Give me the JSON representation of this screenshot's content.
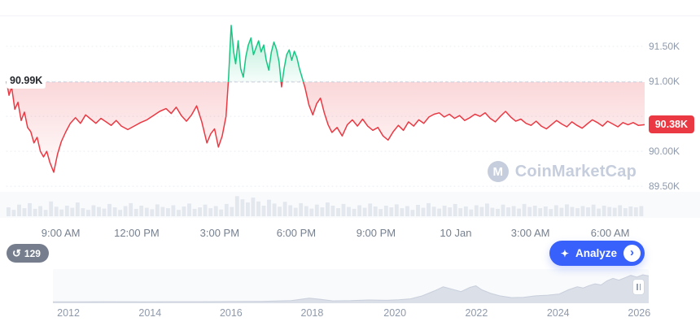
{
  "price_labels": {
    "reference": "90.99K",
    "current": "90.38K"
  },
  "watermark": {
    "text": "CoinMarketCap",
    "logo_letter": "M"
  },
  "controls": {
    "history_count": "129",
    "analyze_label": "Analyze"
  },
  "icons": {
    "history": "↺",
    "sparkle": "✦",
    "chevron_right": "›"
  },
  "chart_data": {
    "type": "line",
    "title": "",
    "ylabel": "",
    "xlabel": "",
    "ylim": [
      89.42,
      91.93
    ],
    "reference_price": 90.99,
    "last_price": 90.38,
    "grid": true,
    "legend": "none",
    "colors": {
      "up": "#16c784",
      "down": "#ea3943",
      "badge": "#ea3943",
      "grid": "#e8ecf2",
      "axis_text": "#8e99ab"
    },
    "y_ticks": [
      {
        "value": 91.5,
        "label": "91.50K"
      },
      {
        "value": 91.0,
        "label": "91.00K"
      },
      {
        "value": 90.5,
        "label": ""
      },
      {
        "value": 90.0,
        "label": "90.00K"
      },
      {
        "value": 89.5,
        "label": "89.50K"
      }
    ],
    "x_ticks": [
      {
        "label": "9:00 AM",
        "f": 0.085
      },
      {
        "label": "12:00 PM",
        "f": 0.204
      },
      {
        "label": "3:00 PM",
        "f": 0.334
      },
      {
        "label": "6:00 PM",
        "f": 0.454
      },
      {
        "label": "9:00 PM",
        "f": 0.579
      },
      {
        "label": "10 Jan",
        "f": 0.704
      },
      {
        "label": "3:00 AM",
        "f": 0.821
      },
      {
        "label": "6:00 AM",
        "f": 0.946
      }
    ],
    "series": [
      {
        "name": "price",
        "points": [
          [
            0.0,
            91.0
          ],
          [
            0.004,
            90.8
          ],
          [
            0.008,
            90.92
          ],
          [
            0.013,
            90.6
          ],
          [
            0.018,
            90.7
          ],
          [
            0.023,
            90.44
          ],
          [
            0.028,
            90.56
          ],
          [
            0.033,
            90.34
          ],
          [
            0.038,
            90.28
          ],
          [
            0.043,
            90.12
          ],
          [
            0.048,
            90.2
          ],
          [
            0.053,
            90.0
          ],
          [
            0.058,
            89.92
          ],
          [
            0.063,
            90.0
          ],
          [
            0.068,
            89.84
          ],
          [
            0.074,
            89.7
          ],
          [
            0.08,
            89.96
          ],
          [
            0.086,
            90.14
          ],
          [
            0.093,
            90.28
          ],
          [
            0.1,
            90.4
          ],
          [
            0.108,
            90.48
          ],
          [
            0.116,
            90.4
          ],
          [
            0.124,
            90.52
          ],
          [
            0.132,
            90.46
          ],
          [
            0.14,
            90.4
          ],
          [
            0.148,
            90.47
          ],
          [
            0.156,
            90.42
          ],
          [
            0.164,
            90.37
          ],
          [
            0.172,
            90.44
          ],
          [
            0.18,
            90.36
          ],
          [
            0.19,
            90.31
          ],
          [
            0.2,
            90.36
          ],
          [
            0.21,
            90.41
          ],
          [
            0.22,
            90.45
          ],
          [
            0.23,
            90.51
          ],
          [
            0.24,
            90.57
          ],
          [
            0.25,
            90.61
          ],
          [
            0.258,
            90.54
          ],
          [
            0.266,
            90.63
          ],
          [
            0.274,
            90.51
          ],
          [
            0.282,
            90.43
          ],
          [
            0.29,
            90.52
          ],
          [
            0.298,
            90.65
          ],
          [
            0.306,
            90.42
          ],
          [
            0.314,
            90.12
          ],
          [
            0.32,
            90.25
          ],
          [
            0.326,
            90.32
          ],
          [
            0.332,
            90.06
          ],
          [
            0.338,
            90.22
          ],
          [
            0.344,
            90.5
          ],
          [
            0.348,
            91.05
          ],
          [
            0.352,
            91.8
          ],
          [
            0.356,
            91.42
          ],
          [
            0.359,
            91.25
          ],
          [
            0.363,
            91.58
          ],
          [
            0.367,
            91.18
          ],
          [
            0.371,
            91.06
          ],
          [
            0.375,
            91.35
          ],
          [
            0.379,
            91.52
          ],
          [
            0.383,
            91.62
          ],
          [
            0.387,
            91.38
          ],
          [
            0.391,
            91.48
          ],
          [
            0.395,
            91.58
          ],
          [
            0.399,
            91.42
          ],
          [
            0.403,
            91.52
          ],
          [
            0.407,
            91.3
          ],
          [
            0.411,
            91.16
          ],
          [
            0.415,
            91.42
          ],
          [
            0.419,
            91.56
          ],
          [
            0.423,
            91.46
          ],
          [
            0.427,
            91.28
          ],
          [
            0.431,
            90.92
          ],
          [
            0.435,
            91.18
          ],
          [
            0.439,
            91.38
          ],
          [
            0.443,
            91.45
          ],
          [
            0.447,
            91.3
          ],
          [
            0.451,
            91.43
          ],
          [
            0.455,
            91.34
          ],
          [
            0.459,
            91.18
          ],
          [
            0.463,
            91.06
          ],
          [
            0.468,
            90.9
          ],
          [
            0.474,
            90.66
          ],
          [
            0.48,
            90.52
          ],
          [
            0.486,
            90.68
          ],
          [
            0.492,
            90.76
          ],
          [
            0.498,
            90.55
          ],
          [
            0.504,
            90.38
          ],
          [
            0.51,
            90.27
          ],
          [
            0.518,
            90.34
          ],
          [
            0.526,
            90.22
          ],
          [
            0.534,
            90.38
          ],
          [
            0.542,
            90.45
          ],
          [
            0.55,
            90.36
          ],
          [
            0.558,
            90.46
          ],
          [
            0.566,
            90.36
          ],
          [
            0.574,
            90.3
          ],
          [
            0.582,
            90.34
          ],
          [
            0.59,
            90.22
          ],
          [
            0.598,
            90.16
          ],
          [
            0.606,
            90.28
          ],
          [
            0.614,
            90.37
          ],
          [
            0.622,
            90.3
          ],
          [
            0.63,
            90.42
          ],
          [
            0.638,
            90.36
          ],
          [
            0.646,
            90.45
          ],
          [
            0.654,
            90.4
          ],
          [
            0.662,
            90.49
          ],
          [
            0.67,
            90.53
          ],
          [
            0.678,
            90.55
          ],
          [
            0.686,
            90.49
          ],
          [
            0.694,
            90.53
          ],
          [
            0.702,
            90.47
          ],
          [
            0.71,
            90.51
          ],
          [
            0.718,
            90.44
          ],
          [
            0.726,
            90.48
          ],
          [
            0.734,
            90.53
          ],
          [
            0.742,
            90.5
          ],
          [
            0.75,
            90.55
          ],
          [
            0.758,
            90.47
          ],
          [
            0.766,
            90.42
          ],
          [
            0.774,
            90.5
          ],
          [
            0.782,
            90.57
          ],
          [
            0.79,
            90.49
          ],
          [
            0.798,
            90.43
          ],
          [
            0.806,
            90.46
          ],
          [
            0.814,
            90.4
          ],
          [
            0.822,
            90.37
          ],
          [
            0.83,
            90.43
          ],
          [
            0.838,
            90.36
          ],
          [
            0.846,
            90.32
          ],
          [
            0.854,
            90.38
          ],
          [
            0.862,
            90.44
          ],
          [
            0.87,
            90.39
          ],
          [
            0.878,
            90.35
          ],
          [
            0.886,
            90.42
          ],
          [
            0.894,
            90.37
          ],
          [
            0.902,
            90.33
          ],
          [
            0.91,
            90.39
          ],
          [
            0.918,
            90.45
          ],
          [
            0.926,
            90.41
          ],
          [
            0.934,
            90.36
          ],
          [
            0.942,
            90.43
          ],
          [
            0.95,
            90.39
          ],
          [
            0.958,
            90.35
          ],
          [
            0.966,
            90.41
          ],
          [
            0.974,
            90.38
          ],
          [
            0.982,
            90.41
          ],
          [
            0.99,
            90.37
          ],
          [
            1.0,
            90.38
          ]
        ]
      }
    ],
    "volume_bars": [
      0.42,
      0.3,
      0.55,
      0.38,
      0.62,
      0.35,
      0.48,
      0.3,
      0.7,
      0.45,
      0.32,
      0.5,
      0.4,
      0.65,
      0.38,
      0.3,
      0.52,
      0.44,
      0.36,
      0.58,
      0.42,
      0.3,
      0.48,
      0.62,
      0.35,
      0.5,
      0.4,
      0.33,
      0.56,
      0.44,
      0.38,
      0.52,
      0.3,
      0.46,
      0.6,
      0.35,
      0.42,
      0.55,
      0.38,
      0.48,
      0.32,
      0.58,
      0.44,
      0.95,
      0.8,
      0.65,
      0.88,
      0.7,
      0.5,
      0.78,
      0.6,
      0.45,
      0.68,
      0.52,
      0.4,
      0.62,
      0.48,
      0.36,
      0.55,
      0.42,
      0.65,
      0.5,
      0.38,
      0.58,
      0.44,
      0.35,
      0.52,
      0.4,
      0.6,
      0.46,
      0.34,
      0.5,
      0.42,
      0.56,
      0.38,
      0.48,
      0.3,
      0.54,
      0.4,
      0.62,
      0.45,
      0.36,
      0.5,
      0.42,
      0.58,
      0.38,
      0.46,
      0.32,
      0.52,
      0.44,
      0.6,
      0.4,
      0.35,
      0.55,
      0.42,
      0.48,
      0.36,
      0.58,
      0.44,
      0.5,
      0.38,
      0.46,
      0.34,
      0.52,
      0.4,
      0.56,
      0.44,
      0.38,
      0.48,
      0.42,
      0.55,
      0.36,
      0.5,
      0.44,
      0.4,
      0.52,
      0.38,
      0.46,
      0.42,
      0.48
    ],
    "minimap": {
      "type": "area",
      "year_ticks": [
        {
          "label": "2012",
          "f": 0.026
        },
        {
          "label": "2014",
          "f": 0.163
        },
        {
          "label": "2016",
          "f": 0.299
        },
        {
          "label": "2018",
          "f": 0.435
        },
        {
          "label": "2020",
          "f": 0.574
        },
        {
          "label": "2022",
          "f": 0.711
        },
        {
          "label": "2024",
          "f": 0.848
        },
        {
          "label": "2026",
          "f": 0.984
        }
      ],
      "points": [
        [
          0,
          0.02
        ],
        [
          0.05,
          0.02
        ],
        [
          0.1,
          0.025
        ],
        [
          0.15,
          0.02
        ],
        [
          0.2,
          0.025
        ],
        [
          0.25,
          0.025
        ],
        [
          0.3,
          0.03
        ],
        [
          0.35,
          0.035
        ],
        [
          0.4,
          0.06
        ],
        [
          0.43,
          0.14
        ],
        [
          0.45,
          0.1
        ],
        [
          0.47,
          0.05
        ],
        [
          0.5,
          0.06
        ],
        [
          0.53,
          0.08
        ],
        [
          0.56,
          0.07
        ],
        [
          0.58,
          0.09
        ],
        [
          0.6,
          0.12
        ],
        [
          0.62,
          0.22
        ],
        [
          0.64,
          0.38
        ],
        [
          0.655,
          0.52
        ],
        [
          0.67,
          0.44
        ],
        [
          0.685,
          0.36
        ],
        [
          0.7,
          0.5
        ],
        [
          0.71,
          0.55
        ],
        [
          0.72,
          0.42
        ],
        [
          0.735,
          0.3
        ],
        [
          0.75,
          0.22
        ],
        [
          0.77,
          0.16
        ],
        [
          0.79,
          0.17
        ],
        [
          0.81,
          0.22
        ],
        [
          0.83,
          0.24
        ],
        [
          0.85,
          0.28
        ],
        [
          0.865,
          0.42
        ],
        [
          0.88,
          0.52
        ],
        [
          0.89,
          0.48
        ],
        [
          0.9,
          0.56
        ],
        [
          0.91,
          0.62
        ],
        [
          0.92,
          0.58
        ],
        [
          0.93,
          0.72
        ],
        [
          0.94,
          0.8
        ],
        [
          0.95,
          0.74
        ],
        [
          0.96,
          0.82
        ],
        [
          0.97,
          0.9
        ],
        [
          0.98,
          0.84
        ],
        [
          0.99,
          0.92
        ],
        [
          1,
          0.88
        ]
      ]
    }
  }
}
